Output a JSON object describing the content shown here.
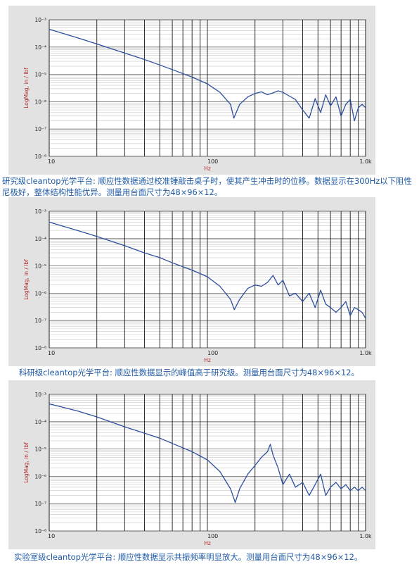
{
  "charts": [
    {
      "caption": "研究级cleantop光学平台: 顺应性数据通过校准锤敲击桌子时，使其产生冲击时的位移。数据显示在300Hz以下阻性尼极好，整体结构性能优异。测量用台面尺寸为48×96×12。",
      "chart_data": {
        "type": "line",
        "scale": "log-log",
        "xlabel": "Hz",
        "ylabel": "LogMag, in / lbf",
        "xlim": [
          10,
          1000
        ],
        "ylim": [
          1e-08,
          0.001
        ],
        "xticks": [
          "10",
          "100",
          "1.0k"
        ],
        "yticks": [
          "10⁻⁸",
          "10⁻⁷",
          "10⁻⁶",
          "10⁻⁵",
          "10⁻⁴",
          "10⁻³"
        ],
        "grid": true,
        "x": [
          10,
          15,
          20,
          30,
          40,
          50,
          60,
          80,
          100,
          120,
          140,
          147,
          160,
          180,
          200,
          220,
          240,
          260,
          280,
          300,
          330,
          360,
          400,
          440,
          480,
          520,
          560,
          600,
          650,
          700,
          750,
          800,
          850,
          900,
          950,
          1000
        ],
        "y": [
          0.00045,
          0.00022,
          0.00013,
          6e-05,
          3.5e-05,
          2.2e-05,
          1.5e-05,
          8e-06,
          4.5e-06,
          2.2e-06,
          8e-07,
          2.5e-07,
          8e-07,
          1.5e-06,
          2e-06,
          2.3e-06,
          1.8e-06,
          2.1e-06,
          2.5e-06,
          2.2e-06,
          1.6e-06,
          1.2e-06,
          5e-07,
          2.5e-07,
          1.3e-06,
          4e-07,
          1.8e-06,
          7e-07,
          1.5e-06,
          3e-07,
          8e-07,
          1.2e-06,
          2e-07,
          6e-07,
          8e-07,
          6e-07
        ]
      }
    },
    {
      "caption": "科研级cleantop光学平台: 顺应性数据显示的峰值高于研究级。测量用台面尺寸为48×96×12。",
      "chart_data": {
        "type": "line",
        "scale": "log-log",
        "xlabel": "Hz",
        "ylabel": "LogMag, in / lbf",
        "xlim": [
          10,
          1000
        ],
        "ylim": [
          1e-08,
          0.001
        ],
        "xticks": [
          "10",
          "100",
          "1.0k"
        ],
        "yticks": [
          "10⁻⁸",
          "10⁻⁷",
          "10⁻⁶",
          "10⁻⁵",
          "10⁻⁴",
          "10⁻³"
        ],
        "grid": true,
        "x": [
          10,
          15,
          20,
          30,
          40,
          50,
          60,
          80,
          100,
          120,
          140,
          148,
          160,
          180,
          200,
          220,
          240,
          260,
          280,
          300,
          330,
          360,
          400,
          440,
          480,
          520,
          560,
          600,
          650,
          700,
          750,
          800,
          850,
          900,
          950,
          1000
        ],
        "y": [
          0.0004,
          0.0002,
          0.00012,
          5.5e-05,
          3e-05,
          2e-05,
          1.3e-05,
          7e-06,
          4e-06,
          1.8e-06,
          6e-07,
          2.5e-07,
          6e-07,
          1.5e-06,
          2e-06,
          1.8e-06,
          2.5e-06,
          4.5e-06,
          2e-06,
          3e-06,
          8e-07,
          1e-06,
          5e-07,
          1e-06,
          3e-07,
          1.3e-06,
          4e-07,
          3e-07,
          2e-07,
          3e-07,
          5e-07,
          1.5e-07,
          3e-07,
          2.5e-07,
          2e-07,
          1.2e-07
        ]
      }
    },
    {
      "caption": "实验室级cleantop光学平台: 顺应性数据显示共振频率明显放大。测量用台面尺寸为48×96×12。",
      "chart_data": {
        "type": "line",
        "scale": "log-log",
        "xlabel": "Hz",
        "ylabel": "LogMag, in / lbf",
        "xlim": [
          10,
          1000
        ],
        "ylim": [
          1e-08,
          0.001
        ],
        "xticks": [
          "10",
          "100",
          "1.0k"
        ],
        "yticks": [
          "10⁻⁸",
          "10⁻⁷",
          "10⁻⁶",
          "10⁻⁵",
          "10⁻⁴",
          "10⁻³"
        ],
        "grid": true,
        "x": [
          10,
          15,
          20,
          30,
          40,
          50,
          60,
          80,
          100,
          120,
          140,
          150,
          160,
          180,
          200,
          220,
          240,
          250,
          260,
          280,
          300,
          330,
          360,
          400,
          440,
          480,
          520,
          560,
          600,
          650,
          700,
          750,
          800,
          850,
          900,
          950,
          1000
        ],
        "y": [
          0.00045,
          0.00025,
          0.00015,
          6.5e-05,
          3.8e-05,
          2.5e-05,
          1.6e-05,
          8e-06,
          4e-06,
          1.5e-06,
          3.5e-07,
          1.1e-07,
          3.5e-07,
          1.2e-06,
          2.5e-06,
          5e-06,
          8e-06,
          1.5e-05,
          6e-06,
          2e-06,
          5e-07,
          1.2e-06,
          4e-07,
          6e-07,
          2e-07,
          5e-07,
          1.2e-06,
          2e-07,
          4e-07,
          6e-07,
          3.5e-07,
          5e-07,
          3e-07,
          4e-07,
          3e-07,
          4e-07,
          3e-07
        ]
      }
    }
  ]
}
